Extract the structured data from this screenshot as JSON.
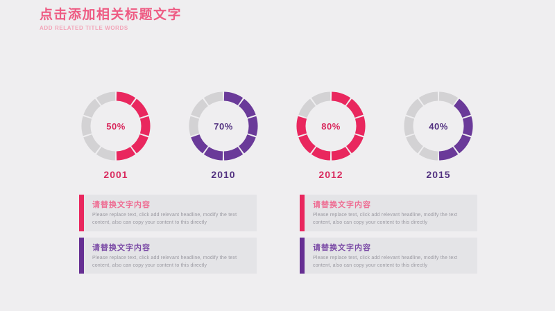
{
  "header": {
    "title": "点击添加相关标题文字",
    "subtitle": "ADD RELATED TITLE WORDS",
    "title_color": "#ee5b83",
    "subtitle_color": "#f2a4b8"
  },
  "colors": {
    "background": "#efeef0",
    "pink": "#e9275e",
    "purple": "#6a3a99",
    "track_gray": "#d3d2d4",
    "block_background": "#e4e4e7",
    "body_text": "#9a99a1"
  },
  "chart_data": {
    "type": "pie",
    "subtype": "segmented-donut",
    "segments_per_ring": 10,
    "track_color": "#d3d2d4",
    "donuts": [
      {
        "year": "2001",
        "percent": 50,
        "color": "#e9275e",
        "text_color": "#d92a5e",
        "start_segment": 0
      },
      {
        "year": "2010",
        "percent": 70,
        "color": "#6a3a99",
        "text_color": "#523180",
        "start_segment": 0
      },
      {
        "year": "2012",
        "percent": 80,
        "color": "#e9275e",
        "text_color": "#d92a5e",
        "start_segment": 0
      },
      {
        "year": "2015",
        "percent": 40,
        "color": "#6a3a99",
        "text_color": "#523180",
        "start_segment": 1
      }
    ]
  },
  "blocks": [
    {
      "heading": "请替换文字内容",
      "body": "Please replace text, click add relevant headline, modify the text content, also can copy your content to this directly",
      "accent_color": "#e9275e",
      "heading_color": "#ee6d93"
    },
    {
      "heading": "请替换文字内容",
      "body": "Please replace text, click add relevant headline, modify the text content, also can copy your content to this directly",
      "accent_color": "#662f93",
      "heading_color": "#7b4ba6"
    },
    {
      "heading": "请替换文字内容",
      "body": "Please replace text, click add relevant headline, modify the text content, also can copy your content to this directly",
      "accent_color": "#e9275e",
      "heading_color": "#ee6d93"
    },
    {
      "heading": "请替换文字内容",
      "body": "Please replace text, click add relevant headline, modify the text content, also can copy your content to this directly",
      "accent_color": "#662f93",
      "heading_color": "#7b4ba6"
    }
  ]
}
